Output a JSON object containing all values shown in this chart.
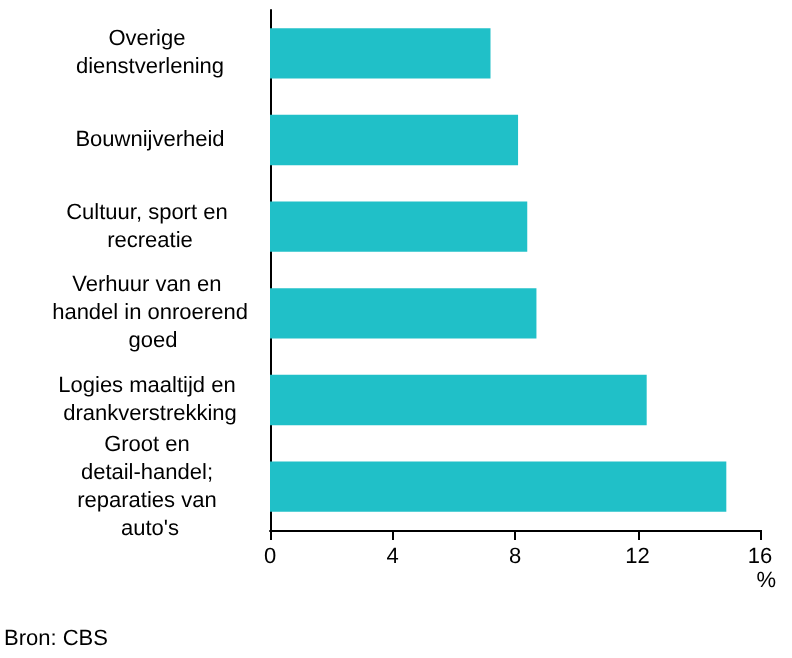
{
  "chart_data": {
    "type": "bar",
    "orientation": "horizontal",
    "categories": [
      "Overige dienstverlening",
      "Bouwnijverheid",
      "Cultuur, sport en recreatie",
      "Verhuur van en handel in onroerend goed",
      "Logies maaltijd en drankverstrekking",
      "Groot en detail-handel; reparaties van auto's"
    ],
    "values": [
      7.2,
      8.1,
      8.4,
      8.7,
      12.3,
      14.9
    ],
    "color": "#20c0c8",
    "xlim": [
      0,
      16
    ],
    "xticks": [
      0,
      4,
      8,
      12,
      16
    ],
    "xlabel": "%",
    "annotations": [
      "Bron: CBS"
    ]
  }
}
